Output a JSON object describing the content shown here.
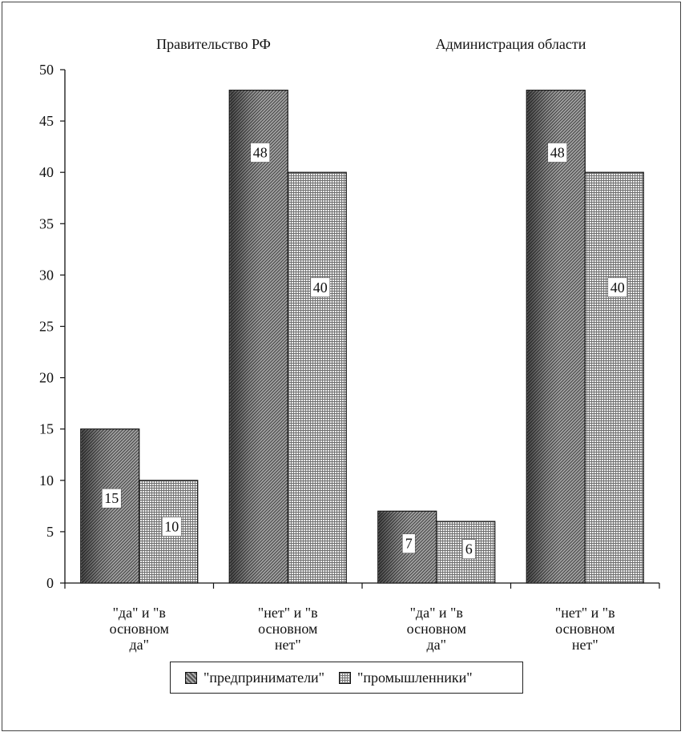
{
  "chart_data": {
    "type": "bar",
    "group_titles": [
      "Правительство РФ",
      "Администрация области"
    ],
    "categories": [
      [
        "\"да\" и \"в",
        "основном",
        "да\""
      ],
      [
        "\"нет\" и \"в",
        "основном",
        "нет\""
      ],
      [
        "\"да\" и \"в",
        "основном",
        "да\""
      ],
      [
        "\"нет\" и \"в",
        "основном",
        "нет\""
      ]
    ],
    "series": [
      {
        "name": "\"предприниматели\"",
        "values": [
          15,
          48,
          7,
          48
        ]
      },
      {
        "name": "\"промышленники\"",
        "values": [
          10,
          40,
          6,
          40
        ]
      }
    ],
    "ylim": [
      0,
      50
    ],
    "yticks": [
      0,
      5,
      10,
      15,
      20,
      25,
      30,
      35,
      40,
      45,
      50
    ],
    "grid": false,
    "legend_position": "bottom"
  },
  "colors": {
    "series_a_dark": "#3a3a3a",
    "series_a_light": "#9a9a9a",
    "series_b_line": "#707070",
    "series_b_bg": "#ebebeb"
  }
}
